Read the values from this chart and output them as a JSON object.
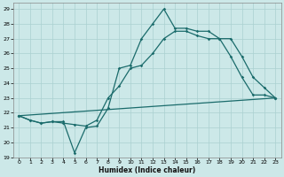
{
  "xlabel": "Humidex (Indice chaleur)",
  "bg_color": "#cce8e8",
  "grid_color": "#aad0d0",
  "line_color": "#1a6b6b",
  "xlim": [
    -0.5,
    23.5
  ],
  "ylim": [
    19,
    29.4
  ],
  "xticks": [
    0,
    1,
    2,
    3,
    4,
    5,
    6,
    7,
    8,
    9,
    10,
    11,
    12,
    13,
    14,
    15,
    16,
    17,
    18,
    19,
    20,
    21,
    22,
    23
  ],
  "yticks": [
    19,
    20,
    21,
    22,
    23,
    24,
    25,
    26,
    27,
    28,
    29
  ],
  "line1_x": [
    0,
    1,
    2,
    3,
    4,
    5,
    6,
    7,
    8,
    9,
    10,
    11,
    12,
    13,
    14,
    15,
    16,
    17,
    18,
    19,
    20,
    21,
    22,
    23
  ],
  "line1_y": [
    21.8,
    21.5,
    21.3,
    21.4,
    21.4,
    19.3,
    21.0,
    21.1,
    22.3,
    25.0,
    25.2,
    27.0,
    28.0,
    29.0,
    27.7,
    27.7,
    27.5,
    27.5,
    27.0,
    25.8,
    24.4,
    23.2,
    23.2,
    23.0
  ],
  "line2_x": [
    0,
    1,
    2,
    3,
    4,
    5,
    6,
    7,
    8,
    9,
    10,
    11,
    12,
    13,
    14,
    15,
    16,
    17,
    18,
    19,
    20,
    21,
    22,
    23
  ],
  "line2_y": [
    21.8,
    21.5,
    21.3,
    21.4,
    21.3,
    21.2,
    21.1,
    21.5,
    23.0,
    23.8,
    25.0,
    25.2,
    26.0,
    27.0,
    27.5,
    27.5,
    27.2,
    27.0,
    27.0,
    27.0,
    25.8,
    24.4,
    23.7,
    23.0
  ],
  "line3_x": [
    0,
    23
  ],
  "line3_y": [
    21.8,
    23.0
  ]
}
